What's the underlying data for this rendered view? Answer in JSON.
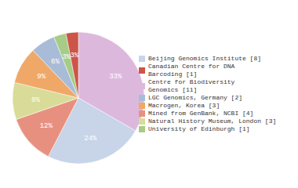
{
  "chart_data": {
    "type": "pie",
    "categories": [
      "Centre for Biodiversity\nGenomics [11]",
      "Beijing Genomics Institute [8]",
      "Mined from GenBank, NCBI [4]",
      "Natural History Museum, London [3]",
      "Macrogen, Korea [3]",
      "LGC Genomics, Germany [2]",
      "University of Edinburgh [1]",
      "Canadian Centre for DNA\nBarcoding [1]"
    ],
    "values": [
      33,
      24,
      12,
      9,
      9,
      6,
      3,
      3
    ],
    "value_labels": [
      "33%",
      "24%",
      "12%",
      "9%",
      "9%",
      "6%",
      "3%",
      "3%"
    ],
    "data_labels": true,
    "colors": [
      "#ddb8dd",
      "#c8d4e8",
      "#e89080",
      "#d8dc98",
      "#f0a868",
      "#a8bcd8",
      "#a8cc88",
      "#cc5548"
    ],
    "legend": "right"
  }
}
